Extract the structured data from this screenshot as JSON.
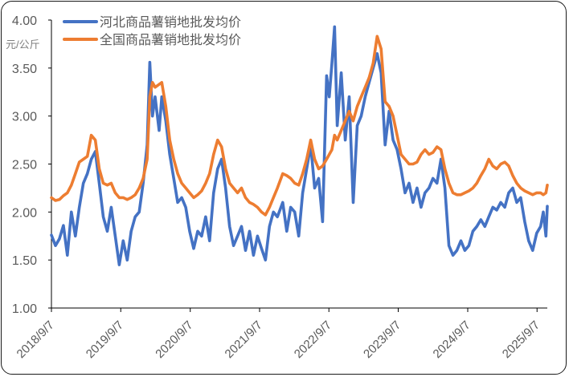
{
  "chart_data": {
    "type": "line",
    "title": "",
    "ylabel": "元/公斤",
    "xlabel": "",
    "ylim": [
      1.0,
      4.0
    ],
    "yticks": [
      "1.00",
      "1.50",
      "2.00",
      "2.50",
      "3.00",
      "3.50",
      "4.00"
    ],
    "xticks": [
      "2018/9/7",
      "2019/9/7",
      "2020/9/7",
      "2021/9/7",
      "2022/9/7",
      "2023/9/7",
      "2024/9/7",
      "2025/9/7"
    ],
    "xlim": [
      "2018/9/7",
      "2025/10/31"
    ],
    "grid": false,
    "legend_position": "top-left",
    "series": [
      {
        "name": "河北商品薯销地批发均价",
        "color": "#4472C4",
        "points": [
          [
            "2018/9/7",
            1.76
          ],
          [
            "2018/9/28",
            1.65
          ],
          [
            "2018/10/19",
            1.72
          ],
          [
            "2018/11/9",
            1.86
          ],
          [
            "2018/11/30",
            1.55
          ],
          [
            "2018/12/21",
            2.0
          ],
          [
            "2019/1/11",
            1.75
          ],
          [
            "2019/2/1",
            2.05
          ],
          [
            "2019/2/22",
            2.3
          ],
          [
            "2019/3/15",
            2.4
          ],
          [
            "2019/4/5",
            2.55
          ],
          [
            "2019/4/26",
            2.63
          ],
          [
            "2019/5/17",
            2.3
          ],
          [
            "2019/6/7",
            1.95
          ],
          [
            "2019/6/28",
            1.8
          ],
          [
            "2019/7/19",
            2.05
          ],
          [
            "2019/8/9",
            1.75
          ],
          [
            "2019/8/30",
            1.45
          ],
          [
            "2019/9/20",
            1.7
          ],
          [
            "2019/10/11",
            1.5
          ],
          [
            "2019/11/1",
            1.8
          ],
          [
            "2019/11/22",
            1.95
          ],
          [
            "2019/12/13",
            2.0
          ],
          [
            "2020/1/3",
            2.3
          ],
          [
            "2020/1/24",
            2.7
          ],
          [
            "2020/2/7",
            3.56
          ],
          [
            "2020/2/21",
            3.0
          ],
          [
            "2020/3/6",
            3.2
          ],
          [
            "2020/3/27",
            2.85
          ],
          [
            "2020/4/10",
            3.2
          ],
          [
            "2020/5/1",
            2.95
          ],
          [
            "2020/5/22",
            2.6
          ],
          [
            "2020/6/12",
            2.35
          ],
          [
            "2020/7/3",
            2.1
          ],
          [
            "2020/7/24",
            2.15
          ],
          [
            "2020/8/14",
            2.05
          ],
          [
            "2020/9/4",
            1.8
          ],
          [
            "2020/9/25",
            1.62
          ],
          [
            "2020/10/16",
            1.8
          ],
          [
            "2020/11/6",
            1.75
          ],
          [
            "2020/11/27",
            1.95
          ],
          [
            "2020/12/18",
            1.7
          ],
          [
            "2021/1/8",
            2.2
          ],
          [
            "2021/1/29",
            2.45
          ],
          [
            "2021/2/19",
            2.55
          ],
          [
            "2021/3/12",
            2.25
          ],
          [
            "2021/4/2",
            1.85
          ],
          [
            "2021/4/23",
            1.65
          ],
          [
            "2021/5/14",
            1.75
          ],
          [
            "2021/6/4",
            1.85
          ],
          [
            "2021/6/25",
            1.6
          ],
          [
            "2021/7/16",
            1.8
          ],
          [
            "2021/8/6",
            1.55
          ],
          [
            "2021/8/27",
            1.75
          ],
          [
            "2021/9/17",
            1.62
          ],
          [
            "2021/10/8",
            1.5
          ],
          [
            "2021/10/29",
            1.85
          ],
          [
            "2021/11/19",
            2.0
          ],
          [
            "2021/12/10",
            1.95
          ],
          [
            "2022/1/7",
            2.1
          ],
          [
            "2022/1/28",
            1.8
          ],
          [
            "2022/2/18",
            2.05
          ],
          [
            "2022/3/11",
            2.0
          ],
          [
            "2022/4/1",
            1.75
          ],
          [
            "2022/4/22",
            2.2
          ],
          [
            "2022/5/13",
            2.45
          ],
          [
            "2022/6/3",
            2.7
          ],
          [
            "2022/6/24",
            2.25
          ],
          [
            "2022/7/15",
            2.35
          ],
          [
            "2022/8/5",
            1.9
          ],
          [
            "2022/8/26",
            3.42
          ],
          [
            "2022/9/9",
            3.2
          ],
          [
            "2022/9/23",
            3.55
          ],
          [
            "2022/10/7",
            3.93
          ],
          [
            "2022/10/21",
            2.9
          ],
          [
            "2022/11/11",
            3.45
          ],
          [
            "2022/12/2",
            2.75
          ],
          [
            "2022/12/23",
            3.2
          ],
          [
            "2023/1/13",
            2.1
          ],
          [
            "2023/2/3",
            2.9
          ],
          [
            "2023/2/24",
            3.0
          ],
          [
            "2023/3/17",
            3.2
          ],
          [
            "2023/4/7",
            3.35
          ],
          [
            "2023/4/28",
            3.5
          ],
          [
            "2023/5/19",
            3.65
          ],
          [
            "2023/6/9",
            3.45
          ],
          [
            "2023/6/30",
            2.7
          ],
          [
            "2023/7/21",
            3.05
          ],
          [
            "2023/8/11",
            2.75
          ],
          [
            "2023/9/1",
            2.65
          ],
          [
            "2023/9/22",
            2.45
          ],
          [
            "2023/10/13",
            2.2
          ],
          [
            "2023/11/3",
            2.3
          ],
          [
            "2023/11/24",
            2.1
          ],
          [
            "2023/12/15",
            2.25
          ],
          [
            "2024/1/5",
            2.05
          ],
          [
            "2024/1/26",
            2.2
          ],
          [
            "2024/2/16",
            2.25
          ],
          [
            "2024/3/8",
            2.35
          ],
          [
            "2024/3/29",
            2.3
          ],
          [
            "2024/4/19",
            2.55
          ],
          [
            "2024/5/10",
            2.25
          ],
          [
            "2024/5/31",
            1.65
          ],
          [
            "2024/6/21",
            1.55
          ],
          [
            "2024/7/12",
            1.6
          ],
          [
            "2024/8/2",
            1.7
          ],
          [
            "2024/8/23",
            1.6
          ],
          [
            "2024/9/13",
            1.65
          ],
          [
            "2024/10/4",
            1.8
          ],
          [
            "2024/10/25",
            1.85
          ],
          [
            "2024/11/15",
            1.92
          ],
          [
            "2024/12/6",
            1.85
          ],
          [
            "2024/12/27",
            1.95
          ],
          [
            "2025/1/17",
            2.05
          ],
          [
            "2025/2/7",
            2.02
          ],
          [
            "2025/2/28",
            2.1
          ],
          [
            "2025/3/21",
            2.05
          ],
          [
            "2025/4/11",
            2.2
          ],
          [
            "2025/5/2",
            2.25
          ],
          [
            "2025/5/23",
            2.1
          ],
          [
            "2025/6/13",
            2.15
          ],
          [
            "2025/7/4",
            1.9
          ],
          [
            "2025/7/25",
            1.7
          ],
          [
            "2025/8/15",
            1.6
          ],
          [
            "2025/9/5",
            1.78
          ],
          [
            "2025/9/26",
            1.85
          ],
          [
            "2025/10/10",
            2.0
          ],
          [
            "2025/10/24",
            1.75
          ],
          [
            "2025/10/31",
            2.06
          ]
        ]
      },
      {
        "name": "全国商品薯销地批发均价",
        "color": "#ED7D31",
        "points": [
          [
            "2018/9/7",
            2.15
          ],
          [
            "2018/9/28",
            2.12
          ],
          [
            "2018/10/19",
            2.13
          ],
          [
            "2018/11/9",
            2.17
          ],
          [
            "2018/11/30",
            2.2
          ],
          [
            "2018/12/21",
            2.28
          ],
          [
            "2019/1/11",
            2.4
          ],
          [
            "2019/2/1",
            2.52
          ],
          [
            "2019/2/22",
            2.55
          ],
          [
            "2019/3/15",
            2.58
          ],
          [
            "2019/4/5",
            2.8
          ],
          [
            "2019/4/26",
            2.75
          ],
          [
            "2019/5/17",
            2.45
          ],
          [
            "2019/6/7",
            2.3
          ],
          [
            "2019/6/28",
            2.28
          ],
          [
            "2019/7/19",
            2.3
          ],
          [
            "2019/8/9",
            2.2
          ],
          [
            "2019/8/30",
            2.15
          ],
          [
            "2019/9/20",
            2.15
          ],
          [
            "2019/10/11",
            2.13
          ],
          [
            "2019/11/1",
            2.15
          ],
          [
            "2019/11/22",
            2.18
          ],
          [
            "2019/12/13",
            2.25
          ],
          [
            "2020/1/3",
            2.35
          ],
          [
            "2020/1/24",
            2.55
          ],
          [
            "2020/2/7",
            3.2
          ],
          [
            "2020/2/21",
            3.35
          ],
          [
            "2020/3/6",
            3.3
          ],
          [
            "2020/3/27",
            3.33
          ],
          [
            "2020/4/10",
            3.35
          ],
          [
            "2020/5/1",
            3.1
          ],
          [
            "2020/5/22",
            2.75
          ],
          [
            "2020/6/12",
            2.55
          ],
          [
            "2020/7/3",
            2.4
          ],
          [
            "2020/7/24",
            2.3
          ],
          [
            "2020/8/14",
            2.25
          ],
          [
            "2020/9/4",
            2.2
          ],
          [
            "2020/9/25",
            2.15
          ],
          [
            "2020/10/16",
            2.18
          ],
          [
            "2020/11/6",
            2.22
          ],
          [
            "2020/11/27",
            2.3
          ],
          [
            "2020/12/18",
            2.4
          ],
          [
            "2021/1/8",
            2.6
          ],
          [
            "2021/1/29",
            2.75
          ],
          [
            "2021/2/19",
            2.68
          ],
          [
            "2021/3/12",
            2.45
          ],
          [
            "2021/4/2",
            2.3
          ],
          [
            "2021/4/23",
            2.25
          ],
          [
            "2021/5/14",
            2.2
          ],
          [
            "2021/6/4",
            2.25
          ],
          [
            "2021/6/25",
            2.15
          ],
          [
            "2021/7/16",
            2.1
          ],
          [
            "2021/8/6",
            2.08
          ],
          [
            "2021/8/27",
            2.05
          ],
          [
            "2021/9/17",
            2.0
          ],
          [
            "2021/10/8",
            1.97
          ],
          [
            "2021/10/29",
            2.05
          ],
          [
            "2021/11/19",
            2.15
          ],
          [
            "2021/12/10",
            2.25
          ],
          [
            "2022/1/7",
            2.4
          ],
          [
            "2022/1/28",
            2.38
          ],
          [
            "2022/2/18",
            2.35
          ],
          [
            "2022/3/11",
            2.3
          ],
          [
            "2022/4/1",
            2.28
          ],
          [
            "2022/4/22",
            2.4
          ],
          [
            "2022/5/13",
            2.55
          ],
          [
            "2022/6/3",
            2.75
          ],
          [
            "2022/6/24",
            2.55
          ],
          [
            "2022/7/15",
            2.45
          ],
          [
            "2022/8/5",
            2.48
          ],
          [
            "2022/8/26",
            2.55
          ],
          [
            "2022/9/9",
            2.6
          ],
          [
            "2022/9/23",
            2.65
          ],
          [
            "2022/10/7",
            2.8
          ],
          [
            "2022/10/21",
            2.75
          ],
          [
            "2022/11/11",
            2.85
          ],
          [
            "2022/12/2",
            2.95
          ],
          [
            "2022/12/23",
            3.05
          ],
          [
            "2023/1/13",
            2.95
          ],
          [
            "2023/2/3",
            3.1
          ],
          [
            "2023/2/24",
            3.2
          ],
          [
            "2023/3/17",
            3.3
          ],
          [
            "2023/4/7",
            3.4
          ],
          [
            "2023/4/28",
            3.55
          ],
          [
            "2023/5/19",
            3.83
          ],
          [
            "2023/6/9",
            3.7
          ],
          [
            "2023/6/30",
            3.15
          ],
          [
            "2023/7/21",
            3.1
          ],
          [
            "2023/8/11",
            3.0
          ],
          [
            "2023/9/1",
            2.8
          ],
          [
            "2023/9/22",
            2.6
          ],
          [
            "2023/10/13",
            2.55
          ],
          [
            "2023/11/3",
            2.5
          ],
          [
            "2023/11/24",
            2.5
          ],
          [
            "2023/12/15",
            2.52
          ],
          [
            "2024/1/5",
            2.6
          ],
          [
            "2024/1/26",
            2.65
          ],
          [
            "2024/2/16",
            2.6
          ],
          [
            "2024/3/8",
            2.62
          ],
          [
            "2024/3/29",
            2.68
          ],
          [
            "2024/4/19",
            2.65
          ],
          [
            "2024/5/10",
            2.45
          ],
          [
            "2024/5/31",
            2.3
          ],
          [
            "2024/6/21",
            2.2
          ],
          [
            "2024/7/12",
            2.18
          ],
          [
            "2024/8/2",
            2.18
          ],
          [
            "2024/8/23",
            2.2
          ],
          [
            "2024/9/13",
            2.22
          ],
          [
            "2024/10/4",
            2.25
          ],
          [
            "2024/10/25",
            2.3
          ],
          [
            "2024/11/15",
            2.38
          ],
          [
            "2024/12/6",
            2.45
          ],
          [
            "2024/12/27",
            2.55
          ],
          [
            "2025/1/17",
            2.48
          ],
          [
            "2025/2/7",
            2.45
          ],
          [
            "2025/2/28",
            2.5
          ],
          [
            "2025/3/21",
            2.52
          ],
          [
            "2025/4/11",
            2.48
          ],
          [
            "2025/5/2",
            2.38
          ],
          [
            "2025/5/23",
            2.3
          ],
          [
            "2025/6/13",
            2.25
          ],
          [
            "2025/7/4",
            2.22
          ],
          [
            "2025/7/25",
            2.2
          ],
          [
            "2025/8/15",
            2.18
          ],
          [
            "2025/9/5",
            2.2
          ],
          [
            "2025/9/26",
            2.2
          ],
          [
            "2025/10/10",
            2.18
          ],
          [
            "2025/10/24",
            2.2
          ],
          [
            "2025/10/31",
            2.28
          ]
        ]
      }
    ]
  }
}
